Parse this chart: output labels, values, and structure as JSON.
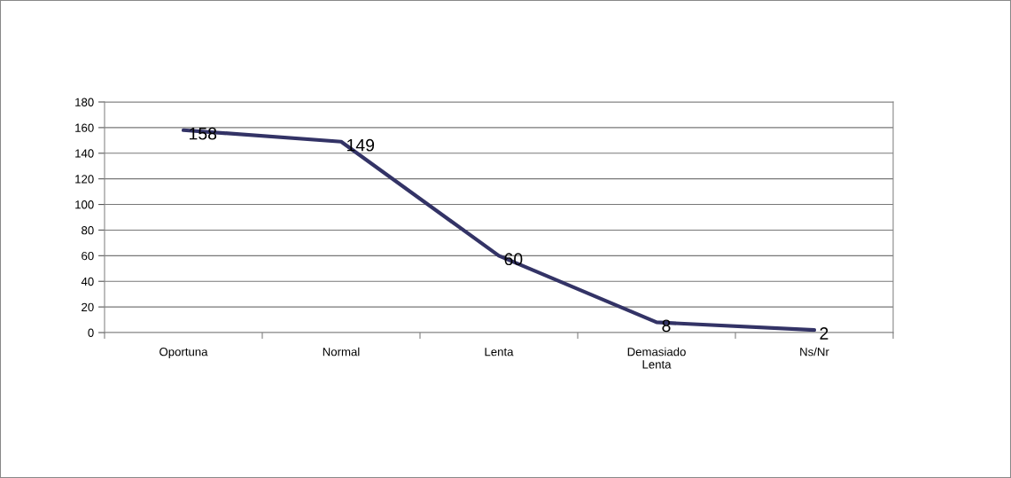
{
  "chart_data": {
    "type": "line",
    "categories": [
      "Oportuna",
      "Normal",
      "Lenta",
      "Demasiado\nLenta",
      "Ns/Nr"
    ],
    "values": [
      158,
      149,
      60,
      8,
      2
    ],
    "color": "#333366",
    "ylim": [
      0,
      180
    ],
    "yticks": [
      0,
      20,
      40,
      60,
      80,
      100,
      120,
      140,
      160,
      180
    ],
    "grid": "y",
    "data_labels": true,
    "marker": "none",
    "line_style": "solid",
    "legend": false
  }
}
